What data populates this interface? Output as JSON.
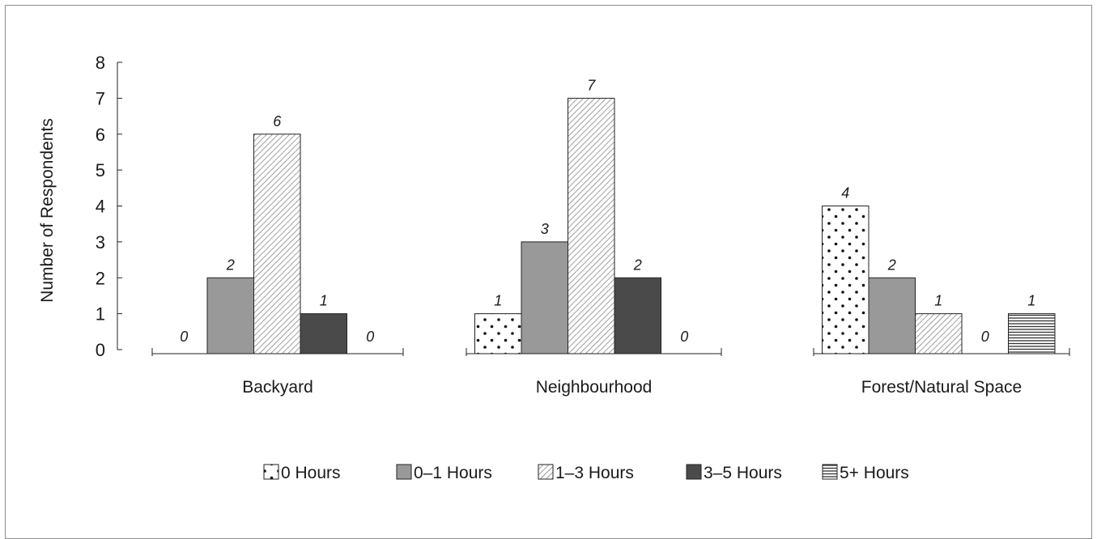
{
  "chart_data": {
    "type": "bar",
    "title": "",
    "xlabel": "",
    "ylabel": "Number of Respondents",
    "ylim": [
      0,
      8
    ],
    "yticks": [
      "0",
      "1",
      "2",
      "3",
      "4",
      "5",
      "6",
      "7",
      "8"
    ],
    "categories": [
      "Backyard",
      "Neighbourhood",
      "Forest/Natural Space"
    ],
    "series": [
      {
        "name": "0 Hours",
        "values": [
          0,
          1,
          4
        ],
        "pattern": "dots"
      },
      {
        "name": "0–1 Hours",
        "values": [
          2,
          3,
          2
        ],
        "pattern": "solid-gray"
      },
      {
        "name": "1–3 Hours",
        "values": [
          6,
          7,
          1
        ],
        "pattern": "diagonal"
      },
      {
        "name": "3–5 Hours",
        "values": [
          1,
          2,
          0
        ],
        "pattern": "solid-dark"
      },
      {
        "name": "5+ Hours",
        "values": [
          0,
          0,
          1
        ],
        "pattern": "horizontal"
      }
    ],
    "legend_position": "bottom",
    "grid": false,
    "colors": {
      "gray": "#999999",
      "dark": "#4a4a4a",
      "border": "#222222"
    }
  }
}
